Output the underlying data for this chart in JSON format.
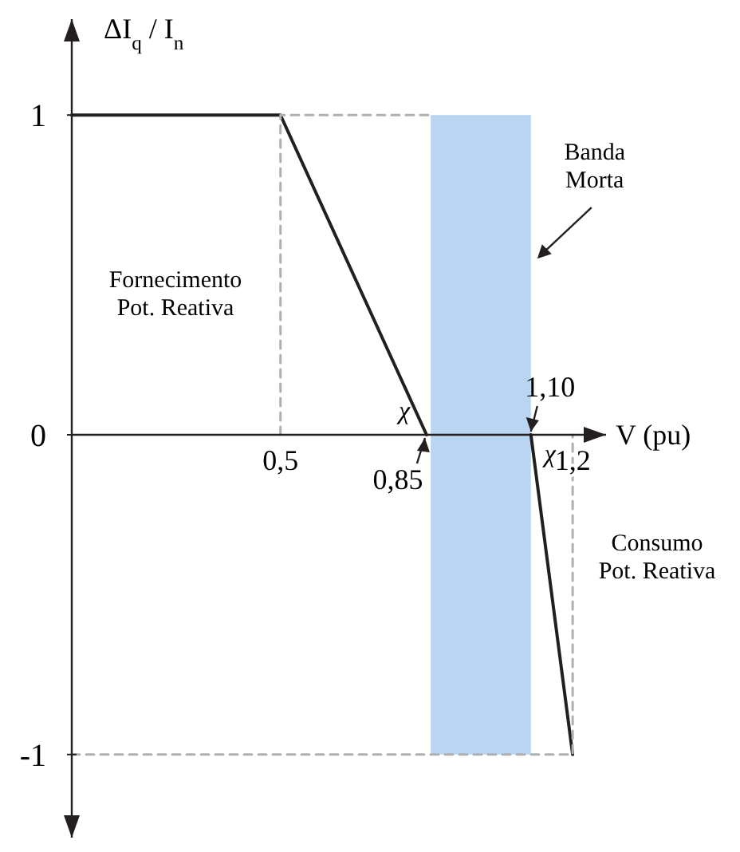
{
  "chart_data": {
    "type": "line",
    "xlabel": "V (pu)",
    "ylabel": "ΔI$_{q}$ / I$_{n}$",
    "xlim": [
      0,
      1.28
    ],
    "ylim": [
      -1.26,
      1.3
    ],
    "xticks": [
      {
        "value": 0.5,
        "label": "0,5"
      },
      {
        "value": 1.2,
        "label": "1,2"
      }
    ],
    "yticks": [
      -1,
      0,
      1
    ],
    "series": [
      {
        "color": "#231f20",
        "x": [
          0,
          0.5,
          0.85,
          0.86,
          1.1,
          1.2
        ],
        "values": [
          1,
          1,
          0,
          null,
          0,
          -1
        ],
        "line_style": "solid"
      },
      {
        "color": "#b0b0b0",
        "x": [
          0.5,
          0.5,
          0.86
        ],
        "values": [
          0,
          1,
          1
        ],
        "line_style": "dashed"
      },
      {
        "color": "#b0b0b0",
        "x": [
          0,
          1.2,
          1.2
        ],
        "values": [
          -1,
          -1,
          0
        ],
        "line_style": "dashed"
      }
    ],
    "bands": [
      {
        "axis": "x",
        "from": 0.86,
        "to": 1.1,
        "color": "#b9d5f2",
        "label": "Banda\nMorta"
      }
    ],
    "annotations": [
      "Fornecimento\nPot. Reativa",
      "Consumo\nPot. Reativa",
      "χ",
      "χ",
      {
        "text": "0,85",
        "x": 0.85,
        "y": 0
      },
      {
        "text": "1,10",
        "x": 1.1,
        "y": 0
      }
    ],
    "grid": false
  }
}
